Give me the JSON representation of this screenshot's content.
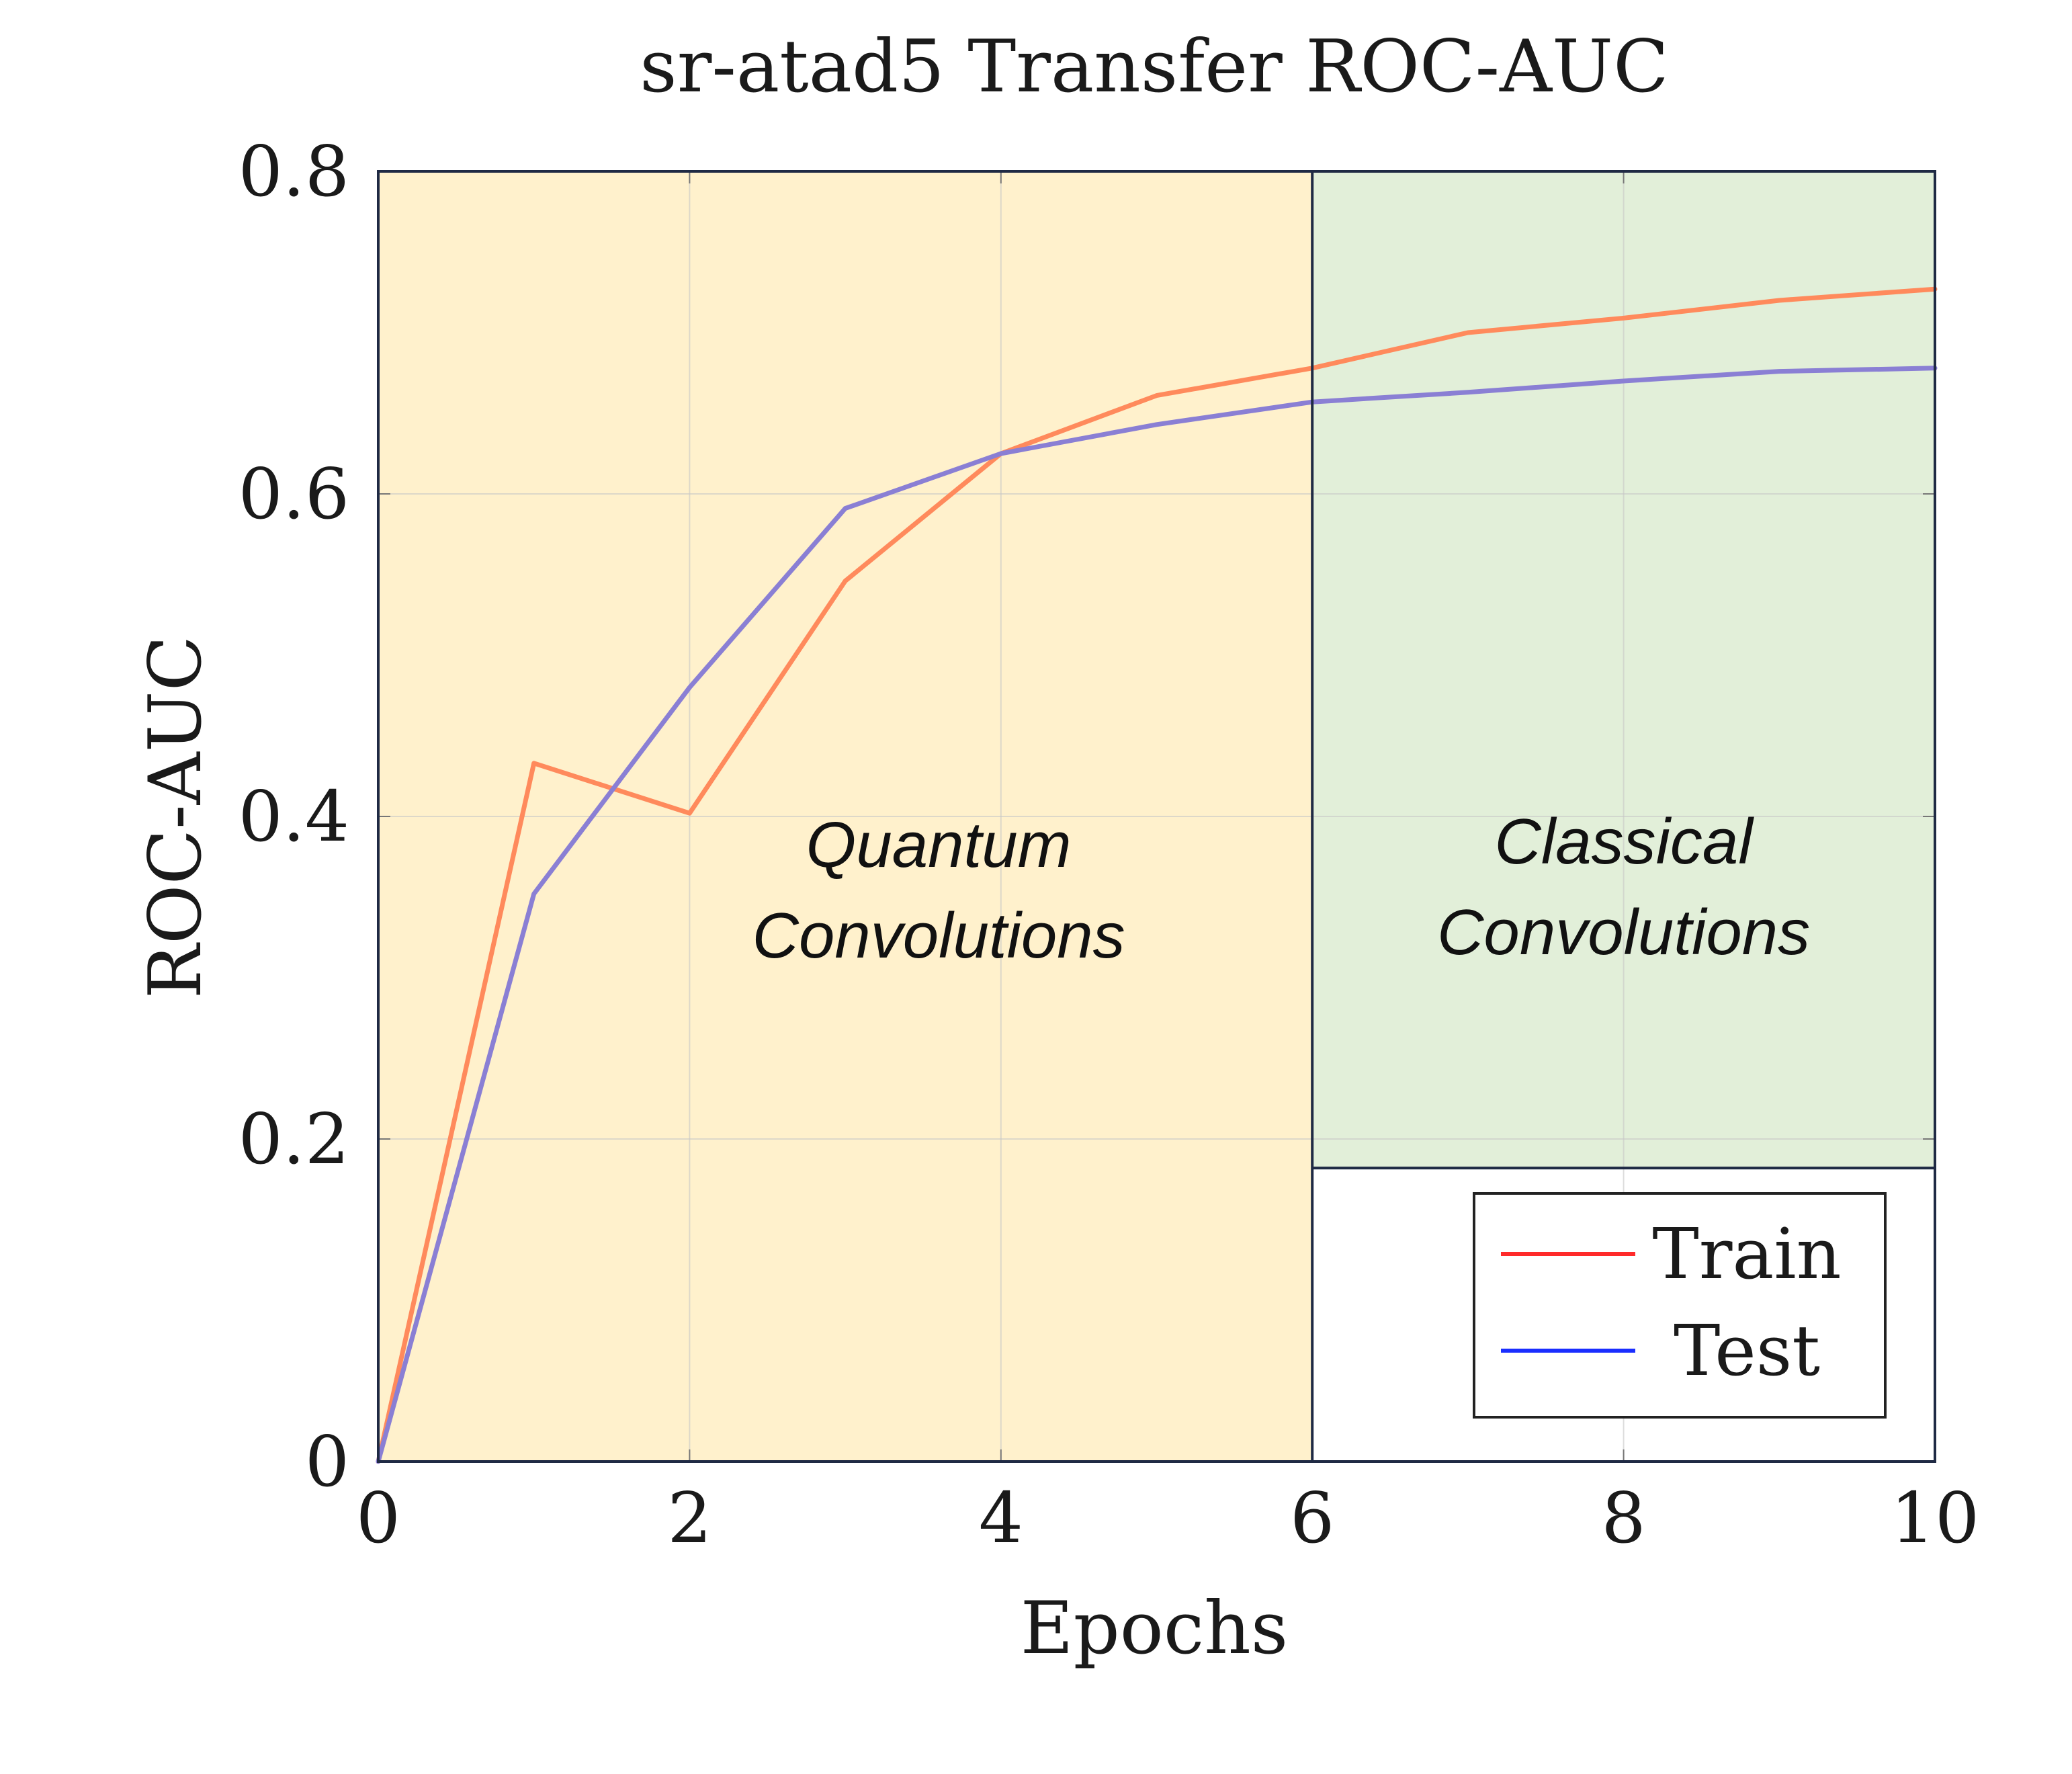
{
  "chart_data": {
    "type": "line",
    "title": "sr-atad5 Transfer ROC-AUC",
    "xlabel": "Epochs",
    "ylabel": "ROC-AUC",
    "xlim": [
      0,
      10
    ],
    "ylim": [
      0,
      0.8
    ],
    "x_ticks": [
      0,
      2,
      4,
      6,
      8,
      10
    ],
    "x_tick_labels": [
      "0",
      "2",
      "4",
      "6",
      "8",
      "10"
    ],
    "y_ticks": [
      0,
      0.2,
      0.4,
      0.6,
      0.8
    ],
    "y_tick_labels": [
      "0",
      "0.2",
      "0.4",
      "0.6",
      "0.8"
    ],
    "grid": true,
    "x": [
      0,
      1,
      2,
      3,
      4,
      5,
      6,
      7,
      8,
      9,
      10
    ],
    "series": [
      {
        "name": "Train",
        "color": "#ff8a5c",
        "legend_color": "#ff2a2a",
        "values": [
          0.0,
          0.433,
          0.402,
          0.546,
          0.625,
          0.661,
          0.678,
          0.7,
          0.709,
          0.72,
          0.727
        ]
      },
      {
        "name": "Test",
        "color": "#8a7fd4",
        "legend_color": "#1a2eff",
        "values": [
          0.0,
          0.352,
          0.48,
          0.591,
          0.625,
          0.643,
          0.657,
          0.663,
          0.67,
          0.676,
          0.678
        ]
      }
    ],
    "regions": [
      {
        "label_lines": [
          "Quantum",
          "Convolutions"
        ],
        "x_range": [
          0,
          6
        ],
        "y_range": [
          0,
          0.8
        ],
        "color": "#fff1cc"
      },
      {
        "label_lines": [
          "Classical",
          "Convolutions"
        ],
        "x_range": [
          6,
          10
        ],
        "y_range": [
          0.182,
          0.8
        ],
        "color": "#e2efd9"
      }
    ],
    "legend": {
      "position": "bottom-right",
      "entries": [
        "Train",
        "Test"
      ]
    }
  }
}
